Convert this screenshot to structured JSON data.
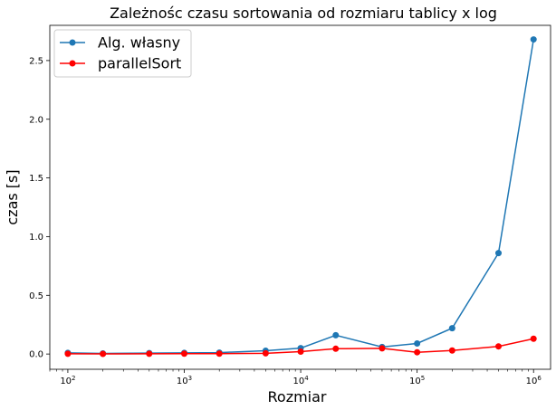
{
  "chart_data": {
    "type": "line",
    "title": "Zależnośc czasu sortowania od rozmiaru tablicy x log",
    "xlabel": "Rozmiar",
    "ylabel": "czas [s]",
    "xscale": "log",
    "xlim": [
      70,
      1400000
    ],
    "ylim": [
      -0.13,
      2.8
    ],
    "x_ticks": [
      {
        "value": 100,
        "base": "10",
        "exp": "2"
      },
      {
        "value": 1000,
        "base": "10",
        "exp": "3"
      },
      {
        "value": 10000,
        "base": "10",
        "exp": "4"
      },
      {
        "value": 100000,
        "base": "10",
        "exp": "5"
      },
      {
        "value": 1000000,
        "base": "10",
        "exp": "6"
      }
    ],
    "y_ticks": [
      {
        "value": 0.0,
        "label": "0.0"
      },
      {
        "value": 0.5,
        "label": "0.5"
      },
      {
        "value": 1.0,
        "label": "1.0"
      },
      {
        "value": 1.5,
        "label": "1.5"
      },
      {
        "value": 2.0,
        "label": "2.0"
      },
      {
        "value": 2.5,
        "label": "2.5"
      }
    ],
    "grid": false,
    "legend_position": "top-left",
    "x": [
      100,
      200,
      500,
      1000,
      2000,
      5000,
      10000,
      20000,
      50000,
      100000,
      200000,
      500000,
      1000000
    ],
    "series": [
      {
        "name": "Alg. własny",
        "color": "#1f77b4",
        "values": [
          0.01,
          0.005,
          0.008,
          0.01,
          0.012,
          0.028,
          0.05,
          0.16,
          0.06,
          0.09,
          0.22,
          0.86,
          2.68
        ]
      },
      {
        "name": "parallelSort",
        "color": "#ff0000",
        "values": [
          0.002,
          0.001,
          0.002,
          0.003,
          0.003,
          0.006,
          0.02,
          0.045,
          0.048,
          0.015,
          0.03,
          0.065,
          0.13
        ]
      }
    ]
  }
}
